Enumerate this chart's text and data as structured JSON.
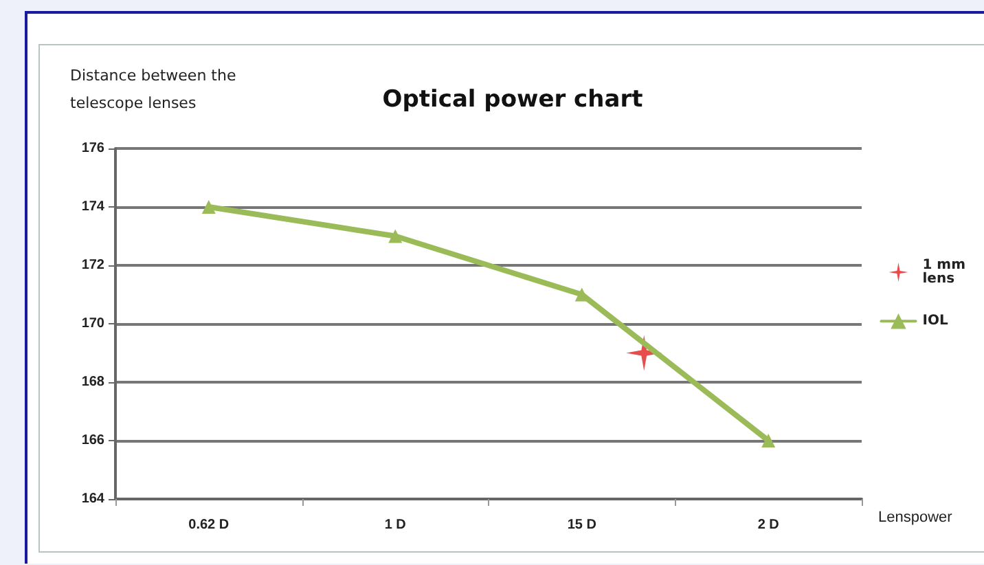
{
  "chart_data": {
    "type": "line",
    "title": "Optical power chart",
    "ylabel": "Distance between the telescope lenses",
    "xlabel": "Lenspower",
    "categories": [
      null,
      null,
      null,
      "0.62 D",
      null,
      null,
      null,
      null,
      null,
      "1 D",
      null,
      null,
      null,
      null,
      null,
      "15 D",
      null,
      null,
      null,
      null,
      null,
      "2 D",
      null,
      null,
      null
    ],
    "series": [
      {
        "name": "1 mm lens",
        "type": "scatter",
        "marker": "star",
        "color": "#e02020",
        "values": [
          null,
          null,
          null,
          null,
          null,
          null,
          null,
          null,
          null,
          null,
          null,
          null,
          null,
          null,
          null,
          null,
          null,
          169,
          null,
          null,
          null,
          null,
          null,
          null,
          null
        ]
      },
      {
        "name": "IOL",
        "color": "#9bbb59",
        "marker": "triangle",
        "values": [
          null,
          null,
          null,
          174,
          null,
          null,
          null,
          null,
          null,
          173,
          null,
          null,
          null,
          null,
          null,
          171,
          null,
          null,
          null,
          null,
          null,
          166,
          null,
          null,
          null
        ]
      }
    ],
    "ylim": [
      164,
      176
    ],
    "yticks": [
      164,
      166,
      168,
      170,
      172,
      174,
      176
    ],
    "grid": "y",
    "legend": "right"
  }
}
